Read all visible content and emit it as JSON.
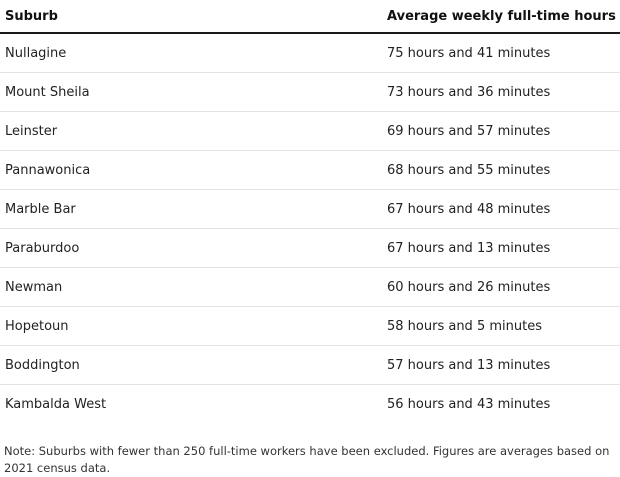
{
  "table": {
    "headers": [
      "Suburb",
      "Average weekly full-time hours"
    ],
    "rows": [
      [
        "Nullagine",
        "75 hours and 41 minutes"
      ],
      [
        "Mount Sheila",
        "73 hours and 36 minutes"
      ],
      [
        "Leinster",
        "69 hours and 57 minutes"
      ],
      [
        "Pannawonica",
        "68 hours and 55 minutes"
      ],
      [
        "Marble Bar",
        "67 hours and 48 minutes"
      ],
      [
        "Paraburdoo",
        "67 hours and 13 minutes"
      ],
      [
        "Newman",
        "60 hours and 26 minutes"
      ],
      [
        "Hopetoun",
        "58 hours and 5 minutes"
      ],
      [
        "Boddington",
        "57 hours and 13 minutes"
      ],
      [
        "Kambalda West",
        "56 hours and 43 minutes"
      ]
    ]
  },
  "note": "Note: Suburbs with fewer than 250 full-time workers have been excluded. Figures are averages based on 2021 census data."
}
